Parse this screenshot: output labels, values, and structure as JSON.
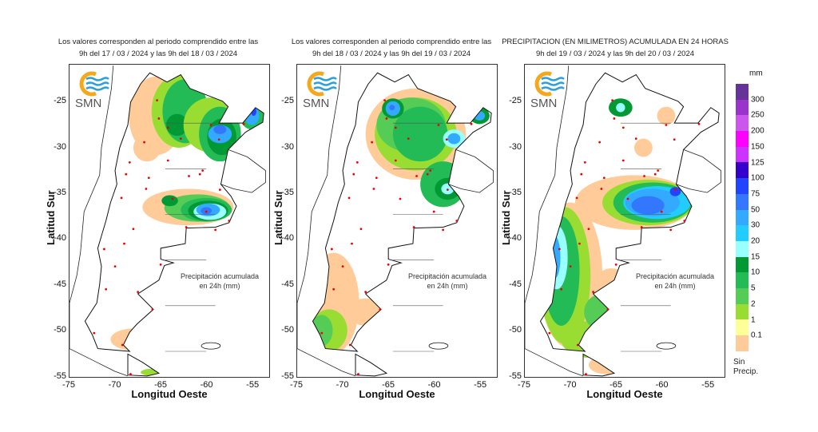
{
  "panels": [
    {
      "title_line1": "Los valores corresponden al periodo comprendido entre las",
      "title_line2": "9h del 17 / 03 / 2024  y las 9h del 18 / 03 / 2024"
    },
    {
      "title_line1": "Los valores corresponden al periodo comprendido entre las",
      "title_line2": "9h del 18 / 03 / 2024  y las 9h del 19 / 03 / 2024"
    },
    {
      "title_line1": "PRECIPITACION (EN MILIMETROS) ACUMULADA EN 24 HORAS",
      "title_line2": "9h del 19 / 03 / 2024  y las 9h del 20 / 03 / 2024"
    }
  ],
  "logo_text": "SMN",
  "axes": {
    "xlabel": "Longitud Oeste",
    "ylabel": "Latitud Sur",
    "xticks": [
      "-75",
      "-70",
      "-65",
      "-60",
      "-55"
    ],
    "yticks": [
      "-25",
      "-30",
      "-35",
      "-40",
      "-45",
      "-50",
      "-55"
    ],
    "xlim": [
      -75,
      -53
    ],
    "ylim": [
      -55,
      -21
    ]
  },
  "annotation": {
    "line1": "Precipitación acumulada",
    "line2": "en 24h (mm)"
  },
  "legend": {
    "unit": "mm",
    "labels": [
      "300",
      "250",
      "200",
      "150",
      "125",
      "100",
      "75",
      "50",
      "30",
      "20",
      "15",
      "10",
      "5",
      "2",
      "1",
      "0.1"
    ],
    "colors": [
      "#663399",
      "#9933cc",
      "#cc55ee",
      "#ff00ff",
      "#cc33ff",
      "#3300cc",
      "#2244ff",
      "#3377ff",
      "#33aaff",
      "#22ccff",
      "#99ffff",
      "#009933",
      "#22bb55",
      "#55cc55",
      "#99dd33",
      "#ffff99",
      "#ffcc99"
    ],
    "no_precip_line1": "Sin",
    "no_precip_line2": "Precip."
  }
}
